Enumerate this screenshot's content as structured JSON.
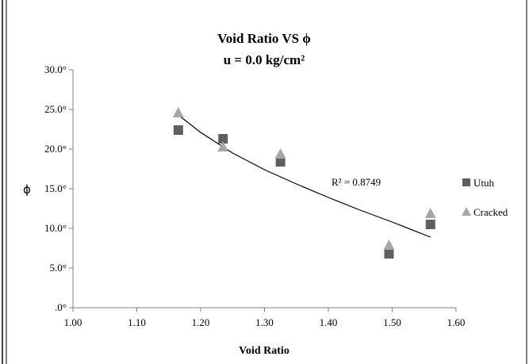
{
  "chart_data": {
    "type": "scatter",
    "title": "Void Ratio VS ϕ",
    "subtitle": "u = 0.0 kg/cm²",
    "xlabel": "Void Ratio",
    "ylabel": "ϕ",
    "xlim": [
      1.0,
      1.6
    ],
    "ylim": [
      0,
      30
    ],
    "x_ticks": [
      "1.00",
      "1.10",
      "1.20",
      "1.30",
      "1.40",
      "1.50",
      "1.60"
    ],
    "y_ticks": [
      ".0°",
      "5.0°",
      "10.0°",
      "15.0°",
      "20.0°",
      "25.0°",
      "30.0°"
    ],
    "grid": false,
    "legend_position": "right",
    "series": [
      {
        "name": "Utuh",
        "marker": "square",
        "color": "#5f5f5f",
        "x": [
          1.165,
          1.235,
          1.325,
          1.495,
          1.56
        ],
        "y": [
          22.4,
          21.3,
          18.4,
          6.8,
          10.5
        ]
      },
      {
        "name": "Cracked",
        "marker": "triangle",
        "color": "#a6a6a6",
        "x": [
          1.165,
          1.235,
          1.325,
          1.495,
          1.56
        ],
        "y": [
          24.6,
          20.3,
          19.4,
          7.9,
          11.9
        ]
      }
    ],
    "trendline": {
      "type": "power",
      "color": "#000000",
      "x": [
        1.165,
        1.2,
        1.25,
        1.3,
        1.35,
        1.4,
        1.45,
        1.5,
        1.56
      ],
      "y": [
        24.3,
        22.1,
        19.5,
        17.4,
        15.6,
        13.9,
        12.3,
        10.8,
        8.9
      ],
      "r2_label": "R² = 0.8749"
    }
  }
}
